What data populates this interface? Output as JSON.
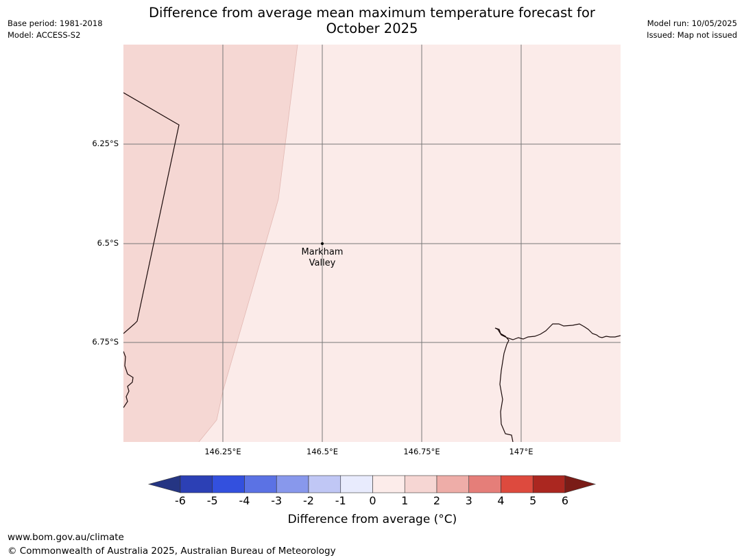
{
  "header": {
    "base_period": "Base period: 1981-2018",
    "model": "Model: ACCESS-S2",
    "model_run": "Model run: 10/05/2025",
    "issued": "Issued: Map not issued",
    "title_line1": "Difference from average mean maximum temperature forecast for",
    "title_line2": "October 2025"
  },
  "map": {
    "lat_labels": [
      "6.25°S",
      "6.5°S",
      "6.75°S"
    ],
    "lon_labels": [
      "146.25°E",
      "146.5°E",
      "146.75°E",
      "147°E"
    ],
    "place": {
      "name_line1": "Markham",
      "name_line2": "Valley"
    },
    "fill_colors": {
      "category_0_to_1": "#fbebe9",
      "category_1_to_2": "#f5d7d3"
    }
  },
  "colorbar": {
    "ticks": [
      "-6",
      "-5",
      "-4",
      "-3",
      "-2",
      "-1",
      "0",
      "1",
      "2",
      "3",
      "4",
      "5",
      "6"
    ],
    "colors": [
      "#253583",
      "#2c40b5",
      "#3350de",
      "#5b72e4",
      "#8898ec",
      "#c0c7f5",
      "#e8ebfd",
      "#fcecea",
      "#f6d6d3",
      "#eeada8",
      "#e57e79",
      "#dd4a3e",
      "#ab2720",
      "#7a1c17"
    ],
    "label": "Difference from average (°C)"
  },
  "footer": {
    "url": "www.bom.gov.au/climate",
    "copyright": "© Commonwealth of Australia 2025, Australian Bureau of Meteorology"
  }
}
